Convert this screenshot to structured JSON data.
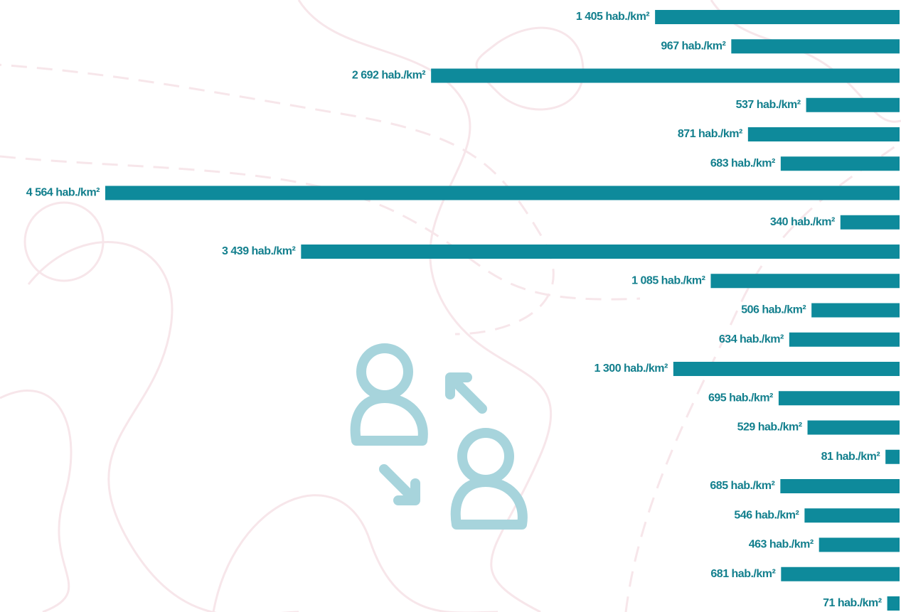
{
  "chart_data": {
    "type": "bar",
    "orientation": "horizontal",
    "color": "#0e8a9b",
    "values": [
      1405,
      967,
      2692,
      537,
      871,
      683,
      4564,
      340,
      3439,
      1085,
      506,
      634,
      1300,
      695,
      529,
      81,
      685,
      546,
      463,
      681,
      71
    ],
    "value_labels": [
      "1 405 hab./km²",
      "967 hab./km²",
      "2 692 hab./km²",
      "537 hab./km²",
      "871 hab./km²",
      "683 hab./km²",
      "4 564 hab./km²",
      "340 hab./km²",
      "3 439 hab./km²",
      "1 085 hab./km²",
      "506 hab./km²",
      "634 hab./km²",
      "1 300 hab./km²",
      "695 hab./km²",
      "529 hab./km²",
      "81 hab./km²",
      "685 hab./km²",
      "546 hab./km²",
      "463 hab./km²",
      "681 hab./km²",
      "71 hab./km²"
    ]
  }
}
